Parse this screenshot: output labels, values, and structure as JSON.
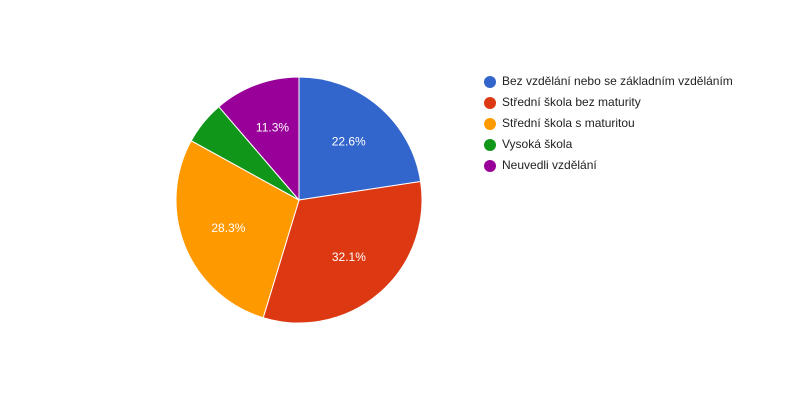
{
  "chart_data": {
    "type": "pie",
    "categories": [
      "Bez vzdělání nebo se základním vzděláním",
      "Střední škola bez maturity",
      "Střední škola s maturitou",
      "Vysoká škola",
      "Neuvedli vzdělání"
    ],
    "values": [
      22.6,
      32.1,
      28.3,
      5.7,
      11.3
    ],
    "value_labels": [
      "22.6%",
      "32.1%",
      "28.3%",
      null,
      "11.3%"
    ],
    "colors": [
      "#3366cc",
      "#dc3912",
      "#ff9900",
      "#109618",
      "#990099"
    ],
    "legend": "right"
  }
}
